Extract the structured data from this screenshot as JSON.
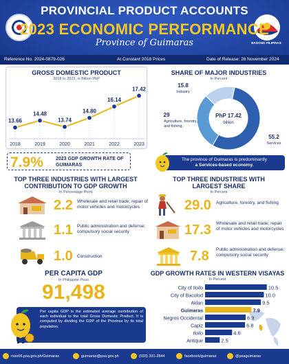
{
  "header": {
    "title1": "PROVINCIAL PRODUCT ACCOUNTS",
    "title2": "2023 ECONOMIC PERFORMANCE",
    "title3": "Province of Guimaras",
    "bp_logo_text": "BAGONG PILIPINAS",
    "reference": "Reference No. 2024-0879-026",
    "basis": "At Constant 2018 Prices",
    "release": "Date of Release: 26 November 2024"
  },
  "colors": {
    "navy": "#1a3a8f",
    "gold": "#e8b41a",
    "light_blue": "#5b9bd5",
    "mid_blue": "#2e6cc4"
  },
  "gdp": {
    "title": "GROSS DOMESTIC PRODUCT",
    "subtitle": "2018 to 2023, in Billion PhP",
    "growth_value": "7.9%",
    "growth_label": "2023 GDP GROWTH RATE OF GUIMARAS"
  },
  "share": {
    "title": "SHARE OF MAJOR INDUSTRIES",
    "subtitle": "In Percent",
    "center_value": "PhP 17.42",
    "center_unit": "billion",
    "note_line1": "The province of Guimaras is predominantly",
    "note_line2": "a Services-based economy."
  },
  "contribution": {
    "title_line1": "TOP THREE INDUSTRIES WITH LARGEST",
    "title_line2": "CONTRIBUTION TO GDP GROWTH",
    "subtitle": "In Percentage Point",
    "items": [
      {
        "value": "2.2",
        "label": "Wholesale and retail trade; repair of motor vehicles and motorcycles"
      },
      {
        "value": "1.1",
        "label": "Public administration and defense; compulsory social security"
      },
      {
        "value": "1.0",
        "label": "Construction"
      }
    ]
  },
  "largest_share": {
    "title_line1": "TOP THREE INDUSTRIES WITH",
    "title_line2": "LARGEST SHARE",
    "subtitle": "In Percent",
    "items": [
      {
        "value": "29.0",
        "label": "Agriculture, forestry, and fishing"
      },
      {
        "value": "17.3",
        "label": "Wholesale and retail trade; repair of motor vehicles and motorcycles"
      },
      {
        "value": "7.8",
        "label": "Public administration and defense; compulsory social security"
      }
    ]
  },
  "per_capita": {
    "title": "PER CAPITA GDP",
    "subtitle": "In Philippine Peso",
    "value": "91,498",
    "note": "Per capita GDP is the estimated average contribution of each individual to the total Gross Domestic Product. It is computed by dividing the GDP of the Province by its total population."
  },
  "western_visayas": {
    "title": "GDP GROWTH RATES IN WESTERN VISAYAS",
    "subtitle": "In Percent"
  },
  "footer": {
    "site": "rsso06.psa.gov.ph/Guimaras",
    "email": "guimaras@psa.gov.ph",
    "phone": "(033) 331-2844",
    "facebook": "facebook/guimaras",
    "handle": "@psaguimaras"
  },
  "chart_data": [
    {
      "type": "line",
      "title": "GROSS DOMESTIC PRODUCT",
      "subtitle": "2018 to 2023, in Billion PhP",
      "x": [
        "2018",
        "2019",
        "2020",
        "2021",
        "2022",
        "2023"
      ],
      "values": [
        13.66,
        14.48,
        13.74,
        14.8,
        16.14,
        17.42
      ],
      "ylim": [
        12.5,
        18.5
      ],
      "grid": false
    },
    {
      "type": "pie",
      "title": "SHARE OF MAJOR INDUSTRIES",
      "subtitle": "In Percent",
      "categories": [
        "Services",
        "Agriculture, forestry, and fishing",
        "Industry"
      ],
      "values": [
        55.2,
        29.0,
        15.8
      ],
      "colors": [
        "#2e5fae",
        "#5b9bd5",
        "#bcd3ef"
      ]
    },
    {
      "type": "bar",
      "title": "GDP GROWTH RATES IN WESTERN VISAYAS",
      "subtitle": "In Percent",
      "categories": [
        "City of Iloilo",
        "City of Bacolod",
        "Aklan",
        "Guimaras",
        "Negros Occidental",
        "Capiz",
        "Iloilo",
        "Antique"
      ],
      "values": [
        10.5,
        10.0,
        9.5,
        7.9,
        6.9,
        6.8,
        4.6,
        2.5
      ],
      "highlight": "Guimaras",
      "xlim": [
        0,
        11
      ]
    }
  ]
}
